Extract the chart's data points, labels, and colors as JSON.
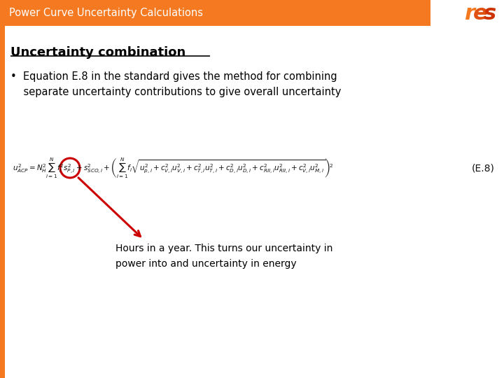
{
  "title": "Power Curve Uncertainty Calculations",
  "title_bg_color": "#F47920",
  "title_text_color": "#FFFFFF",
  "slide_bg_color": "#FFFFFF",
  "left_bar_color": "#F47920",
  "heading": "Uncertainty combination",
  "bullet_line1": "•  Equation E.8 in the standard gives the method for combining",
  "bullet_line2": "    separate uncertainty contributions to give overall uncertainty",
  "annotation_line1": "Hours in a year. This turns our uncertainty in",
  "annotation_line2": "power into and uncertainty in energy",
  "eq_label": "(E.8)",
  "circle_color": "#cc0000",
  "arrow_color": "#cc0000",
  "logo_color": "#F47920",
  "logo_shadow_color": "#cc3300"
}
